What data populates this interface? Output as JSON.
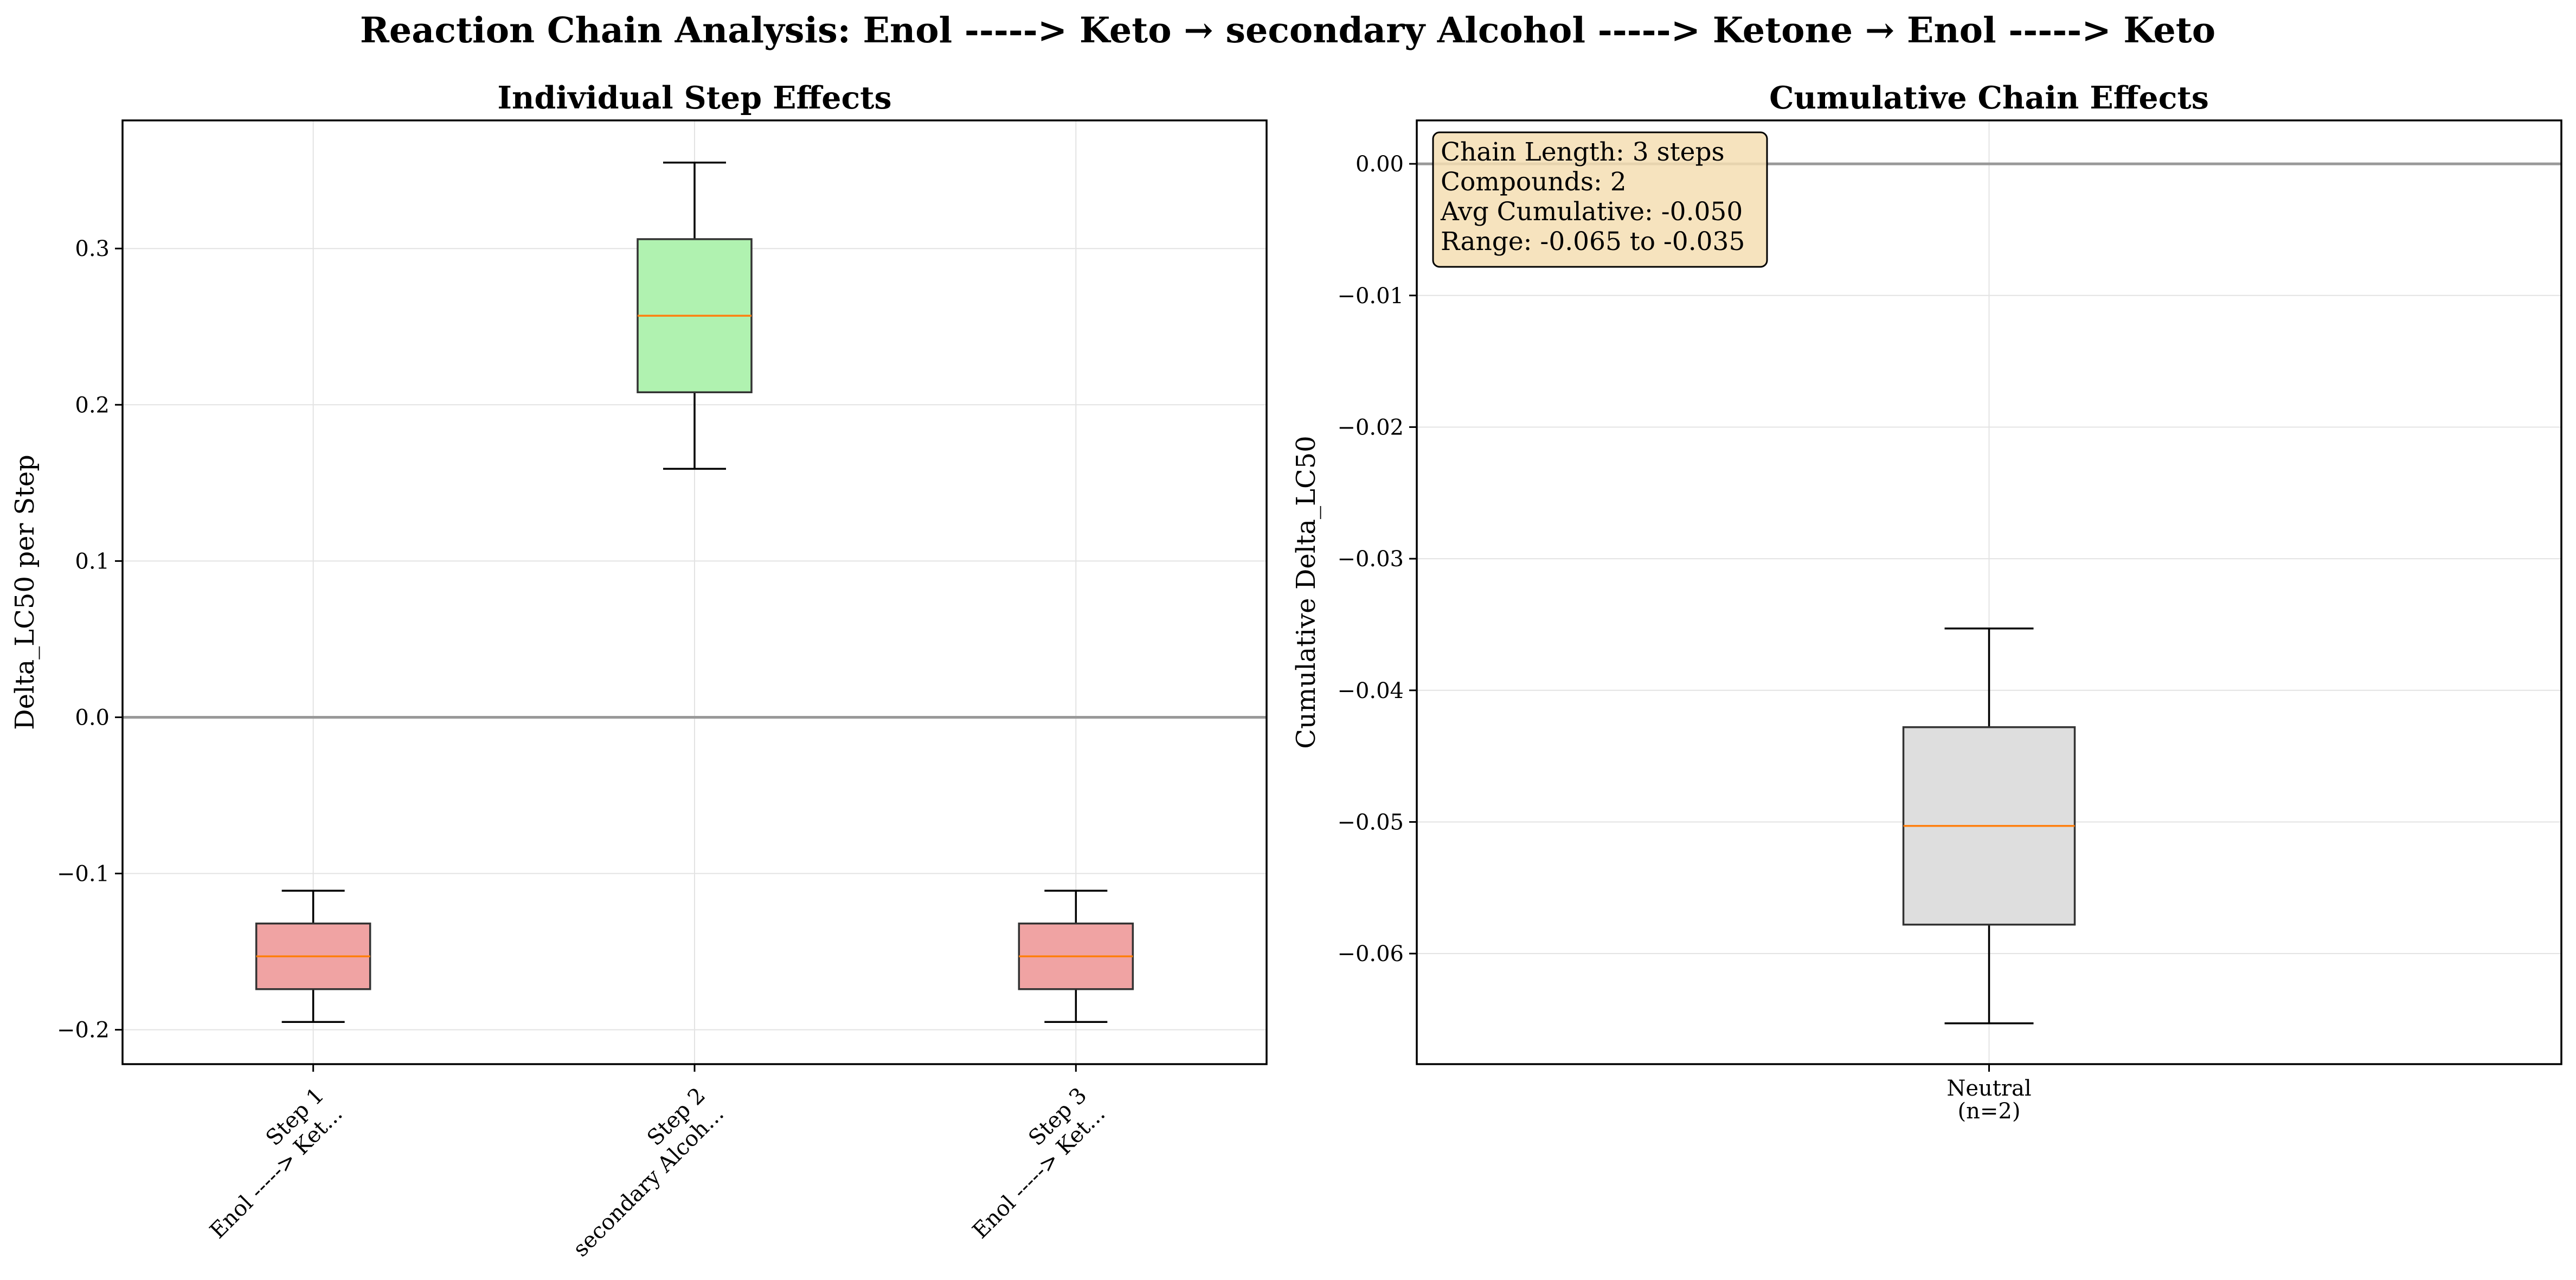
{
  "figure": {
    "title": "Reaction Chain Analysis: Enol -----> Keto → secondary Alcohol -----> Ketone → Enol -----> Keto"
  },
  "chart_data": [
    {
      "type": "box",
      "title": "Individual Step Effects",
      "xlabel": "",
      "ylabel": "Delta_LC50 per Step",
      "ylim": [
        -0.222,
        0.382
      ],
      "yticks": [
        -0.2,
        -0.1,
        0.0,
        0.1,
        0.2,
        0.3
      ],
      "ytick_labels": [
        "−0.2",
        "−0.1",
        "0.0",
        "0.1",
        "0.2",
        "0.3"
      ],
      "grid": true,
      "reference_line": 0,
      "categories": [
        {
          "line1": "Step 1",
          "line2": "Enol -----> Ket..."
        },
        {
          "line1": "Step 2",
          "line2": "secondary Alcoh..."
        },
        {
          "line1": "Step 3",
          "line2": "Enol -----> Ket..."
        }
      ],
      "boxes": [
        {
          "whisker_low": -0.195,
          "q1": -0.174,
          "median": -0.153,
          "q3": -0.132,
          "whisker_high": -0.111,
          "color": "#f0a3a3"
        },
        {
          "whisker_low": 0.159,
          "q1": 0.208,
          "median": 0.257,
          "q3": 0.306,
          "whisker_high": 0.355,
          "color": "#b0f2b0"
        },
        {
          "whisker_low": -0.195,
          "q1": -0.174,
          "median": -0.153,
          "q3": -0.132,
          "whisker_high": -0.111,
          "color": "#f0a3a3"
        }
      ]
    },
    {
      "type": "box",
      "title": "Cumulative Chain Effects",
      "xlabel": "",
      "ylabel": "Cumulative Delta_LC50",
      "ylim": [
        -0.0684,
        0.0033
      ],
      "yticks": [
        0.0,
        -0.01,
        -0.02,
        -0.03,
        -0.04,
        -0.05,
        -0.06
      ],
      "ytick_labels": [
        "0.00",
        "−0.01",
        "−0.02",
        "−0.03",
        "−0.04",
        "−0.05",
        "−0.06"
      ],
      "grid": true,
      "reference_line": 0,
      "categories": [
        {
          "line1": "Neutral",
          "line2": "(n=2)"
        }
      ],
      "boxes": [
        {
          "whisker_low": -0.0653,
          "q1": -0.0578,
          "median": -0.0503,
          "q3": -0.0428,
          "whisker_high": -0.0353,
          "color": "#dedede"
        }
      ],
      "info_box": [
        "Chain Length: 3 steps",
        "Compounds: 2",
        "Avg Cumulative: -0.050",
        "Range: -0.065 to -0.035"
      ]
    }
  ]
}
